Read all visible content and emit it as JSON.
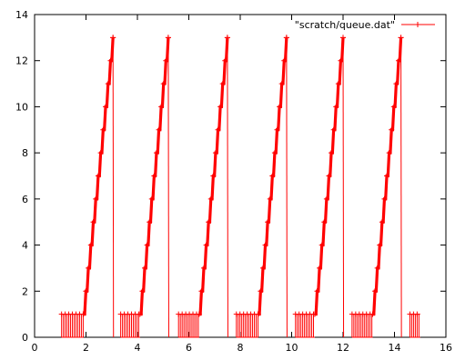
{
  "chart_data": {
    "type": "line",
    "title": "",
    "xlabel": "",
    "ylabel": "",
    "xlim": [
      0,
      16
    ],
    "ylim": [
      0,
      14
    ],
    "x_ticks": [
      "0",
      "2",
      "4",
      "6",
      "8",
      "10",
      "12",
      "14",
      "16"
    ],
    "y_ticks": [
      "0",
      "2",
      "4",
      "6",
      "8",
      "10",
      "12",
      "14"
    ],
    "grid": false,
    "legend_position": "top-right",
    "series": [
      {
        "name": "\"scratch/queue.dat\"",
        "color": "#ff0000",
        "marker": "plus",
        "cycles": [
          {
            "noise_start": 1.05,
            "ramp_start": 1.9,
            "ramp_end": 3.05,
            "peak": 13
          },
          {
            "noise_start": 3.35,
            "ramp_start": 4.1,
            "ramp_end": 5.2,
            "peak": 13
          },
          {
            "noise_start": 5.6,
            "ramp_start": 6.4,
            "ramp_end": 7.5,
            "peak": 13
          },
          {
            "noise_start": 7.85,
            "ramp_start": 8.7,
            "ramp_end": 9.8,
            "peak": 13
          },
          {
            "noise_start": 10.15,
            "ramp_start": 10.9,
            "ramp_end": 12.0,
            "peak": 13
          },
          {
            "noise_start": 12.35,
            "ramp_start": 13.15,
            "ramp_end": 14.25,
            "peak": 13
          },
          {
            "noise_start": 14.6,
            "ramp_start": 15.0,
            "ramp_end": 15.0,
            "peak": 1
          }
        ]
      }
    ]
  }
}
